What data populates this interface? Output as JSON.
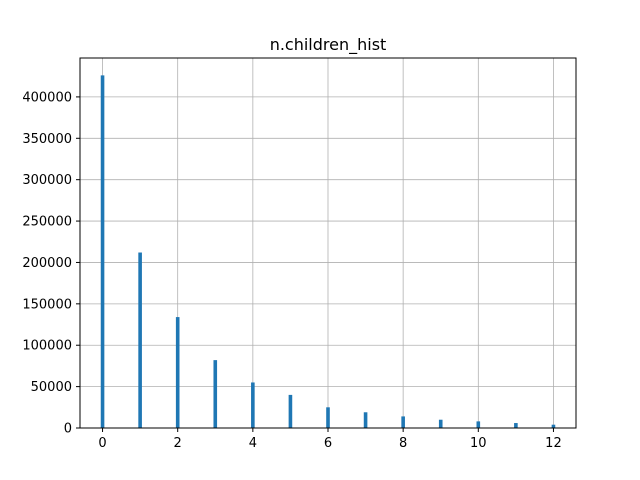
{
  "chart_data": {
    "type": "bar",
    "title": "n.children_hist",
    "xlabel": "",
    "ylabel": "",
    "x": [
      0,
      1,
      2,
      3,
      4,
      5,
      6,
      7,
      8,
      9,
      10,
      11,
      12
    ],
    "values": [
      426000,
      212000,
      134000,
      82000,
      55000,
      40000,
      25000,
      19000,
      14000,
      10000,
      8000,
      6000,
      4000
    ],
    "xlim": [
      -0.6,
      12.6
    ],
    "ylim": [
      0,
      447000
    ],
    "xticks": [
      0,
      2,
      4,
      6,
      8,
      10,
      12
    ],
    "yticks": [
      0,
      50000,
      100000,
      150000,
      200000,
      250000,
      300000,
      350000,
      400000
    ],
    "grid": true,
    "bar_color": "#1f77b4",
    "grid_color": "#b0b0b0"
  }
}
